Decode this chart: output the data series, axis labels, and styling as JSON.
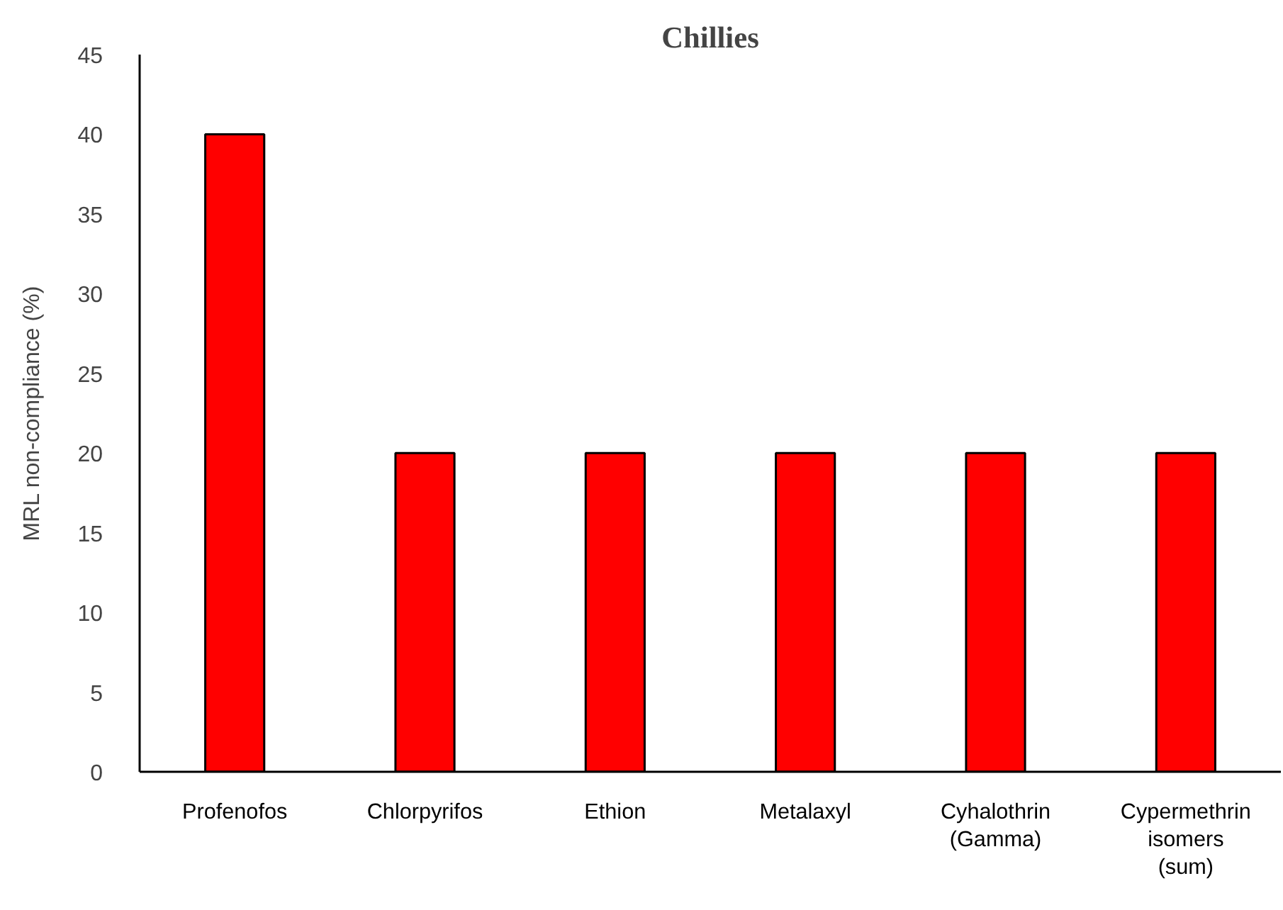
{
  "chart_data": {
    "type": "bar",
    "title": "Chillies",
    "ylabel": "MRL non-compliance (%)",
    "categories": [
      "Profenofos",
      "Chlorpyrifos",
      "Ethion",
      "Metalaxyl",
      "Cyhalothrin (Gamma)",
      "Cypermethrin isomers (sum)"
    ],
    "values": [
      40,
      20,
      20,
      20,
      20,
      20
    ],
    "color": "#ff0000",
    "ylim": [
      0,
      45
    ],
    "yticks": [
      0,
      5,
      10,
      15,
      20,
      25,
      30,
      35,
      40,
      45
    ]
  }
}
